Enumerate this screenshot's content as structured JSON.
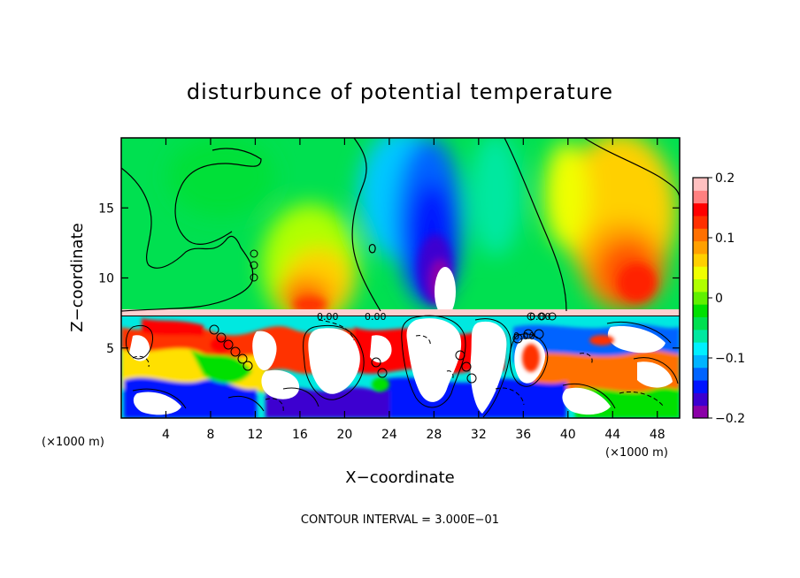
{
  "chart_data": {
    "type": "heatmap",
    "title": "disturbunce of potential temperature",
    "xlabel": "X−coordinate",
    "ylabel": "Z−coordinate",
    "x_unit_left": "(×1000 m)",
    "x_unit_right": "(×1000 m)",
    "xlim": [
      0,
      50
    ],
    "ylim": [
      0,
      20
    ],
    "x_ticks": [
      4,
      8,
      12,
      16,
      20,
      24,
      28,
      32,
      36,
      40,
      44,
      48
    ],
    "y_ticks": [
      5,
      10,
      15
    ],
    "colorbar": {
      "range": [
        -0.2,
        0.2
      ],
      "tick_values": [
        0.2,
        0.1,
        0,
        -0.1,
        -0.2
      ],
      "tick_labels": [
        "0.2",
        "0.1",
        "0",
        "−0.1",
        "−0.2"
      ],
      "colors": [
        "#8b00a8",
        "#3c00d0",
        "#0014ff",
        "#0064ff",
        "#00b4ff",
        "#00f0ff",
        "#00e8a0",
        "#00e050",
        "#00e000",
        "#60f000",
        "#b0ff00",
        "#f0ff00",
        "#ffd000",
        "#ffa000",
        "#ff7000",
        "#ff3000",
        "#ff0000",
        "#ff8080",
        "#ffc0c0"
      ]
    },
    "contour_labels": [
      "0.00",
      "0.00",
      "0.00",
      "0.00"
    ],
    "contour_interval": "CONTOUR INTERVAL = 3.000E−01",
    "grid": false
  }
}
